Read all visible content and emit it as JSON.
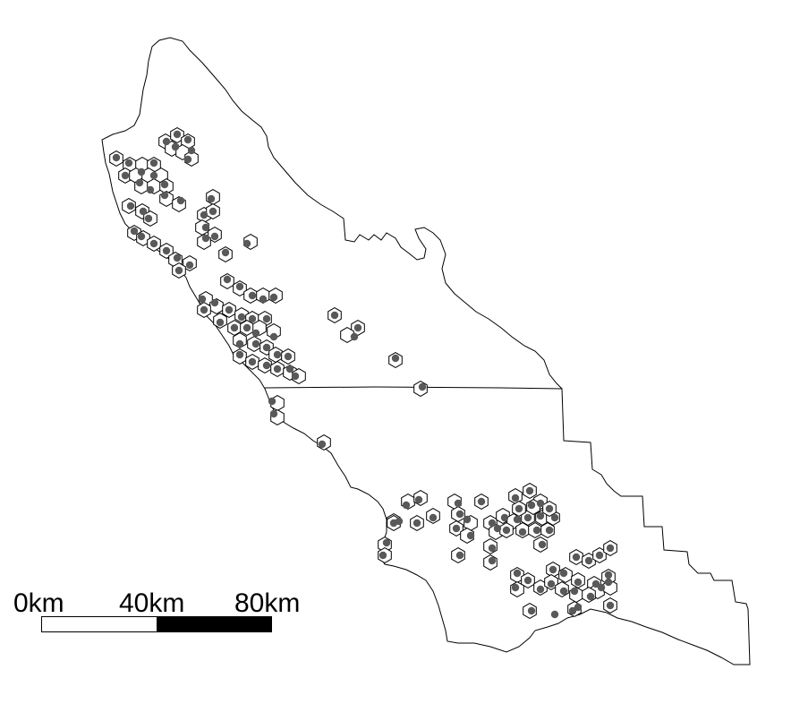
{
  "map": {
    "colors": {
      "background": "#ffffff",
      "outline": "#000000",
      "hex_fill": "#ffffff",
      "hex_stroke": "#000000",
      "point": "#595959"
    }
  },
  "scale_bar": {
    "labels": [
      "0km",
      "40km",
      "80km"
    ],
    "segment_colors": [
      "#ffffff",
      "#000000"
    ]
  }
}
